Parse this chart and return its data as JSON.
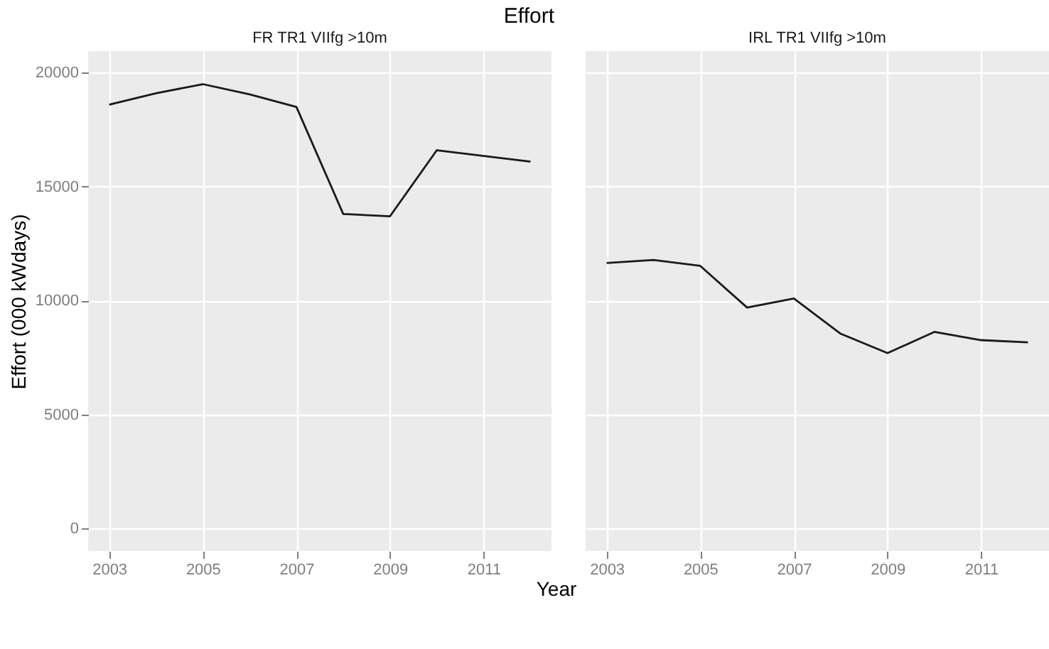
{
  "chart_data": [
    {
      "type": "line",
      "title": "Effort",
      "subtitle": "FR TR1 VIIfg >10m",
      "xlabel": "Year",
      "ylabel": "Effort (000 kWdays)",
      "x": [
        2003,
        2004,
        2005,
        2006,
        2007,
        2008,
        2009,
        2010,
        2011,
        2012
      ],
      "series": [
        {
          "color": "#1a1a1a",
          "values": [
            18600,
            19100,
            19500,
            19050,
            18500,
            13800,
            13700,
            16600,
            16350,
            16100
          ]
        }
      ],
      "xlim": [
        2002.55,
        2012.45
      ],
      "xticks": [
        2003,
        2005,
        2007,
        2009,
        2011
      ],
      "ylim": [
        -1000,
        20950
      ],
      "yticks": [
        0,
        5000,
        10000,
        15000,
        20000
      ],
      "grid": true
    },
    {
      "type": "line",
      "subtitle": "IRL TR1 VIIfg >10m",
      "x": [
        2003,
        2004,
        2005,
        2006,
        2007,
        2008,
        2009,
        2010,
        2011,
        2012
      ],
      "series": [
        {
          "color": "#1a1a1a",
          "values": [
            11650,
            11780,
            11520,
            9690,
            10090,
            8540,
            7690,
            8620,
            8260,
            8160
          ]
        }
      ],
      "xlim": [
        2002.55,
        2012.45
      ],
      "xticks": [
        2003,
        2005,
        2007,
        2009,
        2011
      ],
      "ylim": [
        -1000,
        20950
      ],
      "yticks": [
        0,
        5000,
        10000,
        15000,
        20000
      ],
      "grid": true,
      "tick_labels": "x"
    }
  ]
}
